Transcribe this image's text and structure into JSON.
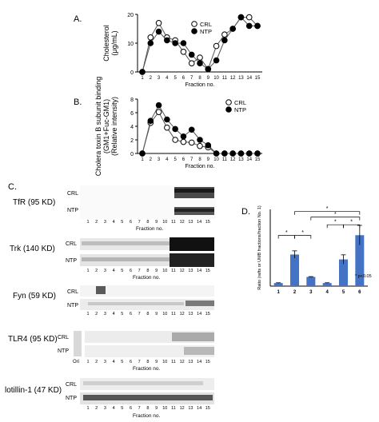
{
  "panel_labels": {
    "a": "A.",
    "b": "B.",
    "c": "C.",
    "d": "D."
  },
  "chart_data": [
    {
      "panel": "A",
      "type": "line",
      "ylabel_line1": "Cholesterol",
      "ylabel_line2": "(μg/mL)",
      "xlabel": "Fraction no.",
      "x": [
        1,
        2,
        3,
        4,
        5,
        6,
        7,
        8,
        9,
        10,
        11,
        12,
        13,
        14,
        15
      ],
      "ylim": [
        0,
        20
      ],
      "yticks": [
        0,
        10,
        20
      ],
      "legend_position": "top-left",
      "series": [
        {
          "name": "CRL",
          "marker": "open-circle",
          "values": [
            0,
            12,
            17,
            12,
            11,
            7,
            3,
            5,
            1,
            9,
            13,
            15,
            19,
            19,
            16
          ]
        },
        {
          "name": "NTP",
          "marker": "filled-circle",
          "values": [
            0,
            10,
            14,
            11,
            10,
            10,
            6,
            3,
            1,
            4,
            11,
            15,
            19,
            16,
            16
          ]
        }
      ]
    },
    {
      "panel": "B",
      "type": "line",
      "ylabel_line1": "Cholera toxin B subunit binding",
      "ylabel_line2": "(GM1+Fuc-GM1)",
      "ylabel_line3": "(Relative intensity)",
      "xlabel": "Fraction no.",
      "x": [
        1,
        2,
        3,
        4,
        5,
        6,
        7,
        8,
        9,
        10,
        11,
        12,
        13,
        14,
        15
      ],
      "ylim": [
        0,
        8
      ],
      "yticks": [
        0,
        2,
        4,
        6,
        8
      ],
      "legend_position": "top-right",
      "series": [
        {
          "name": "CRL",
          "marker": "open-circle",
          "values": [
            0,
            4.5,
            6.1,
            3.8,
            2.0,
            1.7,
            1.6,
            1.1,
            0.9,
            0,
            0,
            0,
            0,
            0,
            0
          ]
        },
        {
          "name": "NTP",
          "marker": "filled-circle",
          "values": [
            0,
            4.8,
            7.1,
            5.0,
            3.6,
            2.5,
            3.5,
            2.0,
            1.2,
            0,
            0,
            0,
            0,
            0,
            0
          ]
        }
      ]
    },
    {
      "panel": "D",
      "type": "bar",
      "ylabel": "Ratio (rafts or UMB fractions/fraction No. 1)",
      "categories": [
        "1",
        "2",
        "3",
        "4",
        "5",
        "6"
      ],
      "values": [
        1.0,
        10.3,
        3.0,
        1.0,
        8.7,
        16.6
      ],
      "errors": [
        0.1,
        1.2,
        0.1,
        0.1,
        1.5,
        3.2
      ],
      "ylim": [
        0,
        25
      ],
      "annotation": "* p<0.05",
      "significance_mark": "*",
      "bar_color": "#4472c4"
    }
  ],
  "blots": {
    "fraction_axis_label": "Fraction no.",
    "fraction_numbers": [
      "1",
      "2",
      "3",
      "4",
      "5",
      "6",
      "7",
      "8",
      "9",
      "10",
      "11",
      "12",
      "13",
      "14",
      "15"
    ],
    "row_labels": {
      "crl": "CRL",
      "ntp": "NTP"
    },
    "origin_label": "Ori",
    "proteins": [
      {
        "name": "TfR (95 KD)"
      },
      {
        "name": "Trk (140 KD)"
      },
      {
        "name": "Fyn (59 KD)"
      },
      {
        "name": "TLR4 (95 KD)"
      },
      {
        "name": "lotillin-1 (47 KD)"
      }
    ]
  }
}
